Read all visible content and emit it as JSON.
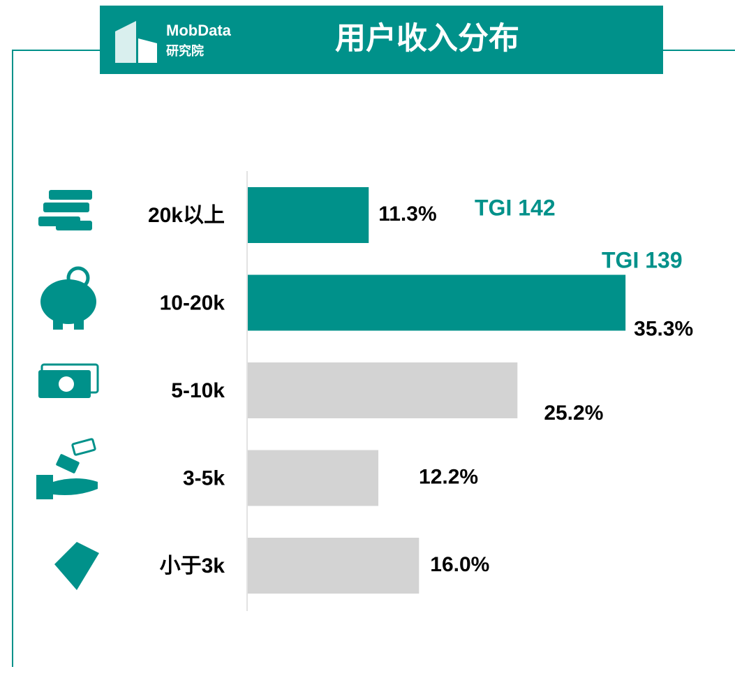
{
  "chart_data": {
    "type": "bar",
    "orientation": "horizontal",
    "title": "用户收入分布",
    "brand": "MobData",
    "brand_sub": "研究院",
    "categories": [
      "20k以上",
      "10-20k",
      "5-10k",
      "3-5k",
      "小于3k"
    ],
    "values": [
      11.3,
      35.3,
      25.2,
      12.2,
      16.0
    ],
    "value_labels": [
      "11.3%",
      "35.3%",
      "25.2%",
      "12.2%",
      "16.0%"
    ],
    "colors": [
      "#00918a",
      "#00918a",
      "#d3d3d3",
      "#d3d3d3",
      "#d3d3d3"
    ],
    "annotations": [
      "TGI 142",
      "TGI 139"
    ]
  }
}
